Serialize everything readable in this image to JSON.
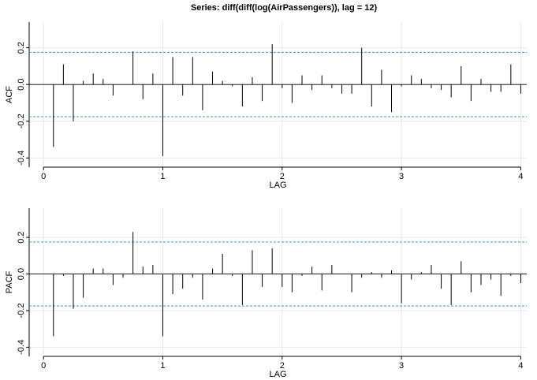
{
  "title": "Series:  diff(diff(log(AirPassengers)), lag = 12)",
  "chart_data": [
    {
      "type": "spike",
      "ylabel": "ACF",
      "xlabel": "LAG",
      "x": [
        0.0833,
        0.1667,
        0.25,
        0.3333,
        0.4167,
        0.5,
        0.5833,
        0.6667,
        0.75,
        0.8333,
        0.9167,
        1,
        1.0833,
        1.1667,
        1.25,
        1.3333,
        1.4167,
        1.5,
        1.5833,
        1.6667,
        1.75,
        1.8333,
        1.9167,
        2,
        2.0833,
        2.1667,
        2.25,
        2.3333,
        2.4167,
        2.5,
        2.5833,
        2.6667,
        2.75,
        2.8333,
        2.9167,
        3,
        3.0833,
        3.1667,
        3.25,
        3.3333,
        3.4167,
        3.5,
        3.5833,
        3.6667,
        3.75,
        3.8333,
        3.9167,
        4
      ],
      "values": [
        -0.34,
        0.11,
        -0.2,
        0.02,
        0.06,
        0.03,
        -0.06,
        0,
        0.18,
        -0.08,
        0.06,
        -0.39,
        0.15,
        -0.06,
        0.15,
        -0.14,
        0.07,
        0.02,
        -0.01,
        -0.12,
        0.04,
        -0.09,
        0.22,
        -0.02,
        -0.1,
        0.05,
        -0.03,
        0.05,
        -0.02,
        -0.05,
        -0.05,
        0.2,
        -0.12,
        0.08,
        -0.15,
        -0.01,
        0.05,
        0.03,
        -0.02,
        -0.03,
        -0.07,
        0.1,
        -0.09,
        0.03,
        -0.04,
        -0.04,
        0.11,
        -0.05
      ],
      "color": "#000000",
      "bands": [
        0.175,
        -0.175
      ],
      "band_color": "#2a9fd6",
      "xlim": [
        -0.12,
        4.05
      ],
      "ylim": [
        -0.45,
        0.34
      ],
      "xticks": [
        0,
        1,
        2,
        3,
        4
      ],
      "yticks": [
        -0.4,
        -0.2,
        {
          "value": 0,
          "label": "0.0"
        },
        0.2
      ],
      "grid": true
    },
    {
      "type": "spike",
      "ylabel": "PACF",
      "xlabel": "LAG",
      "x": [
        0.0833,
        0.1667,
        0.25,
        0.3333,
        0.4167,
        0.5,
        0.5833,
        0.6667,
        0.75,
        0.8333,
        0.9167,
        1,
        1.0833,
        1.1667,
        1.25,
        1.3333,
        1.4167,
        1.5,
        1.5833,
        1.6667,
        1.75,
        1.8333,
        1.9167,
        2,
        2.0833,
        2.1667,
        2.25,
        2.3333,
        2.4167,
        2.5,
        2.5833,
        2.6667,
        2.75,
        2.8333,
        2.9167,
        3,
        3.0833,
        3.1667,
        3.25,
        3.3333,
        3.4167,
        3.5,
        3.5833,
        3.6667,
        3.75,
        3.8333,
        3.9167,
        4
      ],
      "values": [
        -0.34,
        -0.01,
        -0.19,
        -0.13,
        0.03,
        0.03,
        -0.06,
        -0.02,
        0.23,
        0.04,
        0.05,
        -0.34,
        -0.11,
        -0.08,
        -0.02,
        -0.14,
        0.03,
        0.11,
        -0.01,
        -0.17,
        0.13,
        -0.07,
        0.14,
        -0.07,
        -0.1,
        -0.01,
        0.04,
        -0.09,
        0.05,
        0,
        -0.1,
        -0.02,
        0.01,
        -0.02,
        0.02,
        -0.16,
        -0.03,
        0.01,
        0.05,
        -0.08,
        -0.17,
        0.07,
        -0.1,
        -0.06,
        -0.03,
        -0.12,
        -0.01,
        -0.05
      ],
      "color": "#000000",
      "bands": [
        0.175,
        -0.175
      ],
      "band_color": "#2a9fd6",
      "xlim": [
        -0.12,
        4.05
      ],
      "ylim": [
        -0.45,
        0.36
      ],
      "xticks": [
        0,
        1,
        2,
        3,
        4
      ],
      "yticks": [
        -0.4,
        -0.2,
        {
          "value": 0,
          "label": "0.0"
        },
        0.2
      ],
      "grid": true
    }
  ]
}
